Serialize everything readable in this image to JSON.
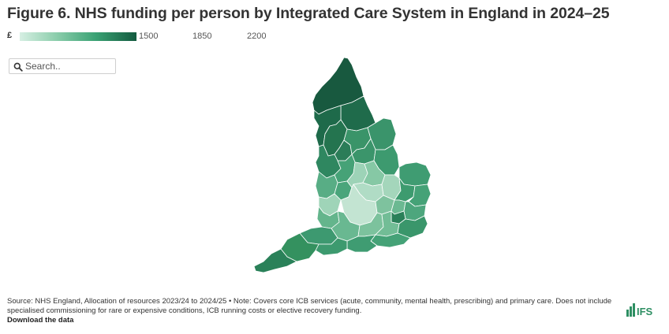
{
  "title": "Figure 6. NHS funding per person by Integrated Care System in England in 2024–25",
  "legend": {
    "currency": "£",
    "ticks": [
      "1500",
      "1850",
      "2200"
    ],
    "colors": [
      "#d6efe3",
      "#8fcfae",
      "#3aa274",
      "#135a3f"
    ]
  },
  "search": {
    "placeholder": "Search.."
  },
  "map": {
    "base_color": "#3f9a6e",
    "region_colors": {
      "north_cumbria": "#18593f",
      "north_east": "#1f6b4b",
      "west_lancs": "#1e6a4a",
      "lancs_south": "#24744f",
      "greater_manchester": "#2b7d58",
      "cheshire_merseyside": "#2f8760",
      "west_yorkshire": "#3a9469",
      "humber": "#3a946b",
      "south_yorkshire": "#3b956b",
      "lincolnshire": "#3d9a6f",
      "norfolk": "#3f9c72",
      "midlands_west": "#58ad85",
      "birmingham": "#4aa57b",
      "staffordshire": "#46a277",
      "derbyshire": "#9dd3b7",
      "nottinghamshire": "#86c8a5",
      "leicestershire": "#b0dcc5",
      "northants": "#a4d6bb",
      "cambridgeshire": "#3d9b6f",
      "suffolk": "#45a277",
      "bedfordshire": "#7ec29e",
      "hertfordshire": "#6bb992",
      "essex": "#4da67d",
      "oxfordshire": "#c3e4d2",
      "gloucestershire": "#9fd4b8",
      "bristol": "#64b58c",
      "wiltshire": "#69b891",
      "berkshire": "#7cc29d",
      "surrey": "#72bd96",
      "north_london": "#2a8059",
      "kent": "#3a966b",
      "sussex": "#45a277",
      "hampshire": "#3f9c72",
      "dorset": "#3d9a6f",
      "somerset": "#3d9970",
      "devon": "#34915f",
      "cornwall": "#2a8159"
    }
  },
  "footer": {
    "source": "Source: NHS England, Allocation of resources 2023/24 to 2024/25 • Note: Covers core ICB services (acute, community, mental health, prescribing) and primary care. Does not include specialised commissioning for rare or expensive conditions, ICB running costs or elective recovery funding.",
    "download": "Download the data",
    "logo_text": "IFS"
  }
}
